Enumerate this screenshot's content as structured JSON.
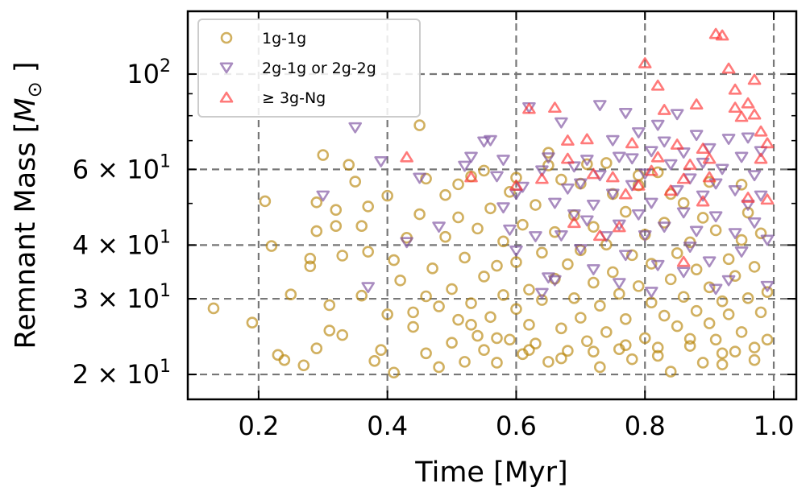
{
  "chart_data": {
    "type": "scatter",
    "xlabel": "Time [Myr]",
    "ylabel": "Remnant Mass [",
    "ylabel_symbol": "M",
    "ylabel_subscript": "⊙",
    "ylabel_close": " ]",
    "xlim": [
      0.09,
      1.035
    ],
    "ylim": [
      17.5,
      140
    ],
    "yscale": "log",
    "grid": "dashed, major ticks only",
    "legend_position": "top-left",
    "x_ticks": [
      {
        "value": 0.2,
        "label": "0.2"
      },
      {
        "value": 0.4,
        "label": "0.4"
      },
      {
        "value": 0.6,
        "label": "0.6"
      },
      {
        "value": 0.8,
        "label": "0.8"
      },
      {
        "value": 1.0,
        "label": "1.0"
      }
    ],
    "y_ticks": [
      {
        "value": 20,
        "base": "2 × 10",
        "exp": "1"
      },
      {
        "value": 30,
        "base": "3 × 10",
        "exp": "1"
      },
      {
        "value": 40,
        "base": "4 × 10",
        "exp": "1"
      },
      {
        "value": 60,
        "base": "6 × 10",
        "exp": "1"
      },
      {
        "value": 100,
        "base": "10",
        "exp": "2"
      }
    ],
    "y_minor_ticks": [
      50,
      70,
      80,
      90
    ],
    "series": [
      {
        "name": "1g-1g",
        "marker": "circle",
        "color": "#b8860b",
        "points": [
          [
            0.13,
            28.5
          ],
          [
            0.19,
            26.4
          ],
          [
            0.21,
            50.6
          ],
          [
            0.22,
            39.8
          ],
          [
            0.23,
            22.2
          ],
          [
            0.24,
            21.6
          ],
          [
            0.25,
            30.7
          ],
          [
            0.27,
            21.0
          ],
          [
            0.28,
            37.2
          ],
          [
            0.28,
            35.7
          ],
          [
            0.29,
            23.0
          ],
          [
            0.29,
            50.3
          ],
          [
            0.29,
            43.1
          ],
          [
            0.3,
            64.8
          ],
          [
            0.31,
            29.0
          ],
          [
            0.31,
            25.3
          ],
          [
            0.32,
            44.3
          ],
          [
            0.32,
            48.3
          ],
          [
            0.33,
            24.7
          ],
          [
            0.33,
            37.8
          ],
          [
            0.34,
            61.5
          ],
          [
            0.35,
            56.2
          ],
          [
            0.36,
            30.5
          ],
          [
            0.36,
            44.3
          ],
          [
            0.37,
            38.6
          ],
          [
            0.38,
            21.5
          ],
          [
            0.39,
            22.8
          ],
          [
            0.4,
            27.6
          ],
          [
            0.4,
            52.1
          ],
          [
            0.41,
            20.2
          ],
          [
            0.42,
            33.1
          ],
          [
            0.43,
            41.6
          ],
          [
            0.44,
            27.9
          ],
          [
            0.44,
            25.8
          ],
          [
            0.45,
            47.2
          ],
          [
            0.45,
            76.0
          ],
          [
            0.46,
            30.4
          ],
          [
            0.46,
            22.4
          ],
          [
            0.47,
            35.3
          ],
          [
            0.48,
            28.8
          ],
          [
            0.48,
            20.8
          ],
          [
            0.49,
            41.8
          ],
          [
            0.49,
            52.3
          ],
          [
            0.5,
            23.7
          ],
          [
            0.5,
            31.6
          ],
          [
            0.51,
            46.4
          ],
          [
            0.51,
            26.8
          ],
          [
            0.52,
            21.4
          ],
          [
            0.52,
            37.4
          ],
          [
            0.53,
            29.3
          ],
          [
            0.53,
            57.8
          ],
          [
            0.54,
            24.6
          ],
          [
            0.54,
            43.7
          ],
          [
            0.55,
            33.8
          ],
          [
            0.55,
            22.8
          ],
          [
            0.56,
            48.7
          ],
          [
            0.56,
            27.2
          ],
          [
            0.57,
            35.8
          ],
          [
            0.57,
            21.3
          ],
          [
            0.58,
            40.8
          ],
          [
            0.58,
            30.6
          ],
          [
            0.59,
            24.1
          ],
          [
            0.59,
            53.2
          ],
          [
            0.6,
            28.4
          ],
          [
            0.6,
            36.5
          ],
          [
            0.61,
            22.3
          ],
          [
            0.61,
            44.6
          ],
          [
            0.62,
            26.1
          ],
          [
            0.62,
            31.5
          ],
          [
            0.63,
            49.6
          ],
          [
            0.63,
            23.6
          ],
          [
            0.64,
            38.4
          ],
          [
            0.64,
            29.8
          ],
          [
            0.65,
            21.4
          ],
          [
            0.65,
            65.6
          ],
          [
            0.66,
            42.9
          ],
          [
            0.66,
            33.4
          ],
          [
            0.67,
            25.6
          ],
          [
            0.67,
            56.8
          ],
          [
            0.68,
            22.7
          ],
          [
            0.68,
            36.1
          ],
          [
            0.69,
            30.1
          ],
          [
            0.69,
            46.9
          ],
          [
            0.7,
            27.1
          ],
          [
            0.7,
            38.9
          ],
          [
            0.71,
            23.9
          ],
          [
            0.71,
            61.7
          ],
          [
            0.72,
            32.7
          ],
          [
            0.72,
            44.1
          ],
          [
            0.73,
            20.8
          ],
          [
            0.73,
            28.9
          ],
          [
            0.74,
            40.1
          ],
          [
            0.74,
            25.1
          ],
          [
            0.75,
            52.6
          ],
          [
            0.75,
            34.6
          ],
          [
            0.76,
            22.9
          ],
          [
            0.76,
            30.8
          ],
          [
            0.77,
            47.8
          ],
          [
            0.77,
            26.9
          ],
          [
            0.78,
            37.9
          ],
          [
            0.78,
            21.7
          ],
          [
            0.79,
            32.1
          ],
          [
            0.79,
            55.1
          ],
          [
            0.8,
            24.3
          ],
          [
            0.8,
            42.3
          ],
          [
            0.81,
            29.4
          ],
          [
            0.81,
            36.2
          ],
          [
            0.82,
            22.1
          ],
          [
            0.82,
            59.1
          ],
          [
            0.83,
            27.4
          ],
          [
            0.83,
            45.1
          ],
          [
            0.84,
            33.3
          ],
          [
            0.84,
            20.3
          ],
          [
            0.85,
            38.3
          ],
          [
            0.85,
            25.9
          ],
          [
            0.86,
            50.1
          ],
          [
            0.86,
            30.3
          ],
          [
            0.87,
            23.3
          ],
          [
            0.87,
            40.6
          ],
          [
            0.88,
            28.1
          ],
          [
            0.88,
            35.1
          ],
          [
            0.89,
            21.3
          ],
          [
            0.89,
            46.3
          ],
          [
            0.9,
            26.3
          ],
          [
            0.9,
            31.9
          ],
          [
            0.91,
            24.1
          ],
          [
            0.91,
            43.3
          ],
          [
            0.92,
            29.6
          ],
          [
            0.92,
            21.1
          ],
          [
            0.93,
            37.1
          ],
          [
            0.93,
            27.6
          ],
          [
            0.94,
            33.9
          ],
          [
            0.94,
            22.6
          ],
          [
            0.95,
            41.1
          ],
          [
            0.95,
            25.1
          ],
          [
            0.96,
            30.1
          ],
          [
            0.96,
            47.6
          ],
          [
            0.97,
            23.1
          ],
          [
            0.97,
            35.6
          ],
          [
            0.98,
            27.9
          ],
          [
            0.98,
            42.6
          ],
          [
            0.99,
            31.1
          ],
          [
            0.99,
            24.1
          ],
          [
            0.37,
            49.2
          ],
          [
            0.41,
            36.9
          ],
          [
            0.46,
            57.1
          ],
          [
            0.51,
            55.4
          ],
          [
            0.55,
            59.6
          ],
          [
            0.6,
            57.4
          ],
          [
            0.65,
            61.3
          ],
          [
            0.7,
            55.6
          ],
          [
            0.74,
            62.1
          ],
          [
            0.79,
            58.1
          ],
          [
            0.84,
            52.6
          ],
          [
            0.9,
            56.1
          ],
          [
            0.95,
            55.3
          ],
          [
            0.53,
            26.1
          ],
          [
            0.57,
            24.3
          ],
          [
            0.62,
            22.8
          ],
          [
            0.67,
            21.8
          ],
          [
            0.72,
            22.6
          ],
          [
            0.77,
            23.4
          ],
          [
            0.82,
            23.1
          ],
          [
            0.87,
            24.2
          ],
          [
            0.92,
            22.4
          ],
          [
            0.97,
            21.6
          ]
        ]
      },
      {
        "name": "2g-1g or 2g-2g",
        "marker": "triangle-down",
        "color": "#7b4f9e",
        "points": [
          [
            0.3,
            52.1
          ],
          [
            0.35,
            75.1
          ],
          [
            0.37,
            31.9
          ],
          [
            0.39,
            62.6
          ],
          [
            0.43,
            40.6
          ],
          [
            0.45,
            57.3
          ],
          [
            0.48,
            44.1
          ],
          [
            0.52,
            61.1
          ],
          [
            0.53,
            64.1
          ],
          [
            0.55,
            69.6
          ],
          [
            0.56,
            70.1
          ],
          [
            0.57,
            57.8
          ],
          [
            0.58,
            48.9
          ],
          [
            0.58,
            63.1
          ],
          [
            0.59,
            43.4
          ],
          [
            0.6,
            38.8
          ],
          [
            0.61,
            54.6
          ],
          [
            0.62,
            83.6
          ],
          [
            0.63,
            41.9
          ],
          [
            0.64,
            30.9
          ],
          [
            0.64,
            59.6
          ],
          [
            0.65,
            33.6
          ],
          [
            0.65,
            63.9
          ],
          [
            0.66,
            50.1
          ],
          [
            0.67,
            42.1
          ],
          [
            0.67,
            77.1
          ],
          [
            0.68,
            54.1
          ],
          [
            0.69,
            47.1
          ],
          [
            0.69,
            60.9
          ],
          [
            0.7,
            39.1
          ],
          [
            0.7,
            55.6
          ],
          [
            0.71,
            63.1
          ],
          [
            0.72,
            49.6
          ],
          [
            0.72,
            35.1
          ],
          [
            0.73,
            58.1
          ],
          [
            0.73,
            84.6
          ],
          [
            0.74,
            41.9
          ],
          [
            0.75,
            70.1
          ],
          [
            0.75,
            52.6
          ],
          [
            0.76,
            44.6
          ],
          [
            0.76,
            64.1
          ],
          [
            0.77,
            81.1
          ],
          [
            0.77,
            37.9
          ],
          [
            0.78,
            55.1
          ],
          [
            0.78,
            63.6
          ],
          [
            0.79,
            47.1
          ],
          [
            0.79,
            73.1
          ],
          [
            0.8,
            42.1
          ],
          [
            0.8,
            58.6
          ],
          [
            0.81,
            66.1
          ],
          [
            0.81,
            50.1
          ],
          [
            0.82,
            76.1
          ],
          [
            0.82,
            35.9
          ],
          [
            0.83,
            69.6
          ],
          [
            0.83,
            44.1
          ],
          [
            0.84,
            61.6
          ],
          [
            0.85,
            80.6
          ],
          [
            0.85,
            53.6
          ],
          [
            0.86,
            47.6
          ],
          [
            0.86,
            65.6
          ],
          [
            0.87,
            39.6
          ],
          [
            0.87,
            57.1
          ],
          [
            0.88,
            72.1
          ],
          [
            0.88,
            43.1
          ],
          [
            0.89,
            62.1
          ],
          [
            0.89,
            52.1
          ],
          [
            0.9,
            36.6
          ],
          [
            0.9,
            67.1
          ],
          [
            0.91,
            55.6
          ],
          [
            0.91,
            46.6
          ],
          [
            0.92,
            60.1
          ],
          [
            0.93,
            33.1
          ],
          [
            0.93,
            70.6
          ],
          [
            0.94,
            42.6
          ],
          [
            0.94,
            53.6
          ],
          [
            0.95,
            64.1
          ],
          [
            0.95,
            38.6
          ],
          [
            0.96,
            49.6
          ],
          [
            0.96,
            71.1
          ],
          [
            0.97,
            58.1
          ],
          [
            0.97,
            45.1
          ],
          [
            0.98,
            52.1
          ],
          [
            0.98,
            66.1
          ],
          [
            0.99,
            41.1
          ],
          [
            0.99,
            32.1
          ],
          [
            0.6,
            52.6
          ],
          [
            0.66,
            33.1
          ],
          [
            0.71,
            45.6
          ],
          [
            0.76,
            32.6
          ],
          [
            0.81,
            31.1
          ],
          [
            0.86,
            34.6
          ],
          [
            0.91,
            31.6
          ]
        ]
      },
      {
        "name": "≥ 3g-Ng",
        "marker": "triangle-up",
        "color": "#ff3333",
        "points": [
          [
            0.43,
            64.1
          ],
          [
            0.53,
            57.6
          ],
          [
            0.6,
            55.1
          ],
          [
            0.62,
            83.1
          ],
          [
            0.64,
            57.1
          ],
          [
            0.66,
            83.6
          ],
          [
            0.68,
            63.6
          ],
          [
            0.68,
            70.1
          ],
          [
            0.69,
            45.1
          ],
          [
            0.71,
            70.6
          ],
          [
            0.72,
            58.6
          ],
          [
            0.73,
            42.1
          ],
          [
            0.75,
            57.6
          ],
          [
            0.76,
            44.1
          ],
          [
            0.77,
            52.6
          ],
          [
            0.78,
            69.1
          ],
          [
            0.79,
            55.1
          ],
          [
            0.8,
            106.1
          ],
          [
            0.81,
            59.6
          ],
          [
            0.82,
            94.1
          ],
          [
            0.82,
            64.1
          ],
          [
            0.83,
            82.6
          ],
          [
            0.84,
            53.6
          ],
          [
            0.85,
            68.6
          ],
          [
            0.86,
            57.1
          ],
          [
            0.86,
            36.6
          ],
          [
            0.87,
            61.6
          ],
          [
            0.88,
            85.1
          ],
          [
            0.89,
            50.6
          ],
          [
            0.89,
            67.1
          ],
          [
            0.9,
            57.6
          ],
          [
            0.91,
            124.1
          ],
          [
            0.92,
            123.1
          ],
          [
            0.93,
            103.1
          ],
          [
            0.94,
            83.6
          ],
          [
            0.95,
            79.6
          ],
          [
            0.96,
            85.6
          ],
          [
            0.96,
            51.6
          ],
          [
            0.97,
            80.6
          ],
          [
            0.97,
            97.1
          ],
          [
            0.98,
            63.6
          ],
          [
            0.98,
            73.6
          ],
          [
            0.99,
            51.1
          ],
          [
            0.99,
            69.1
          ],
          [
            0.9,
            63.6
          ],
          [
            0.94,
            92.1
          ]
        ]
      }
    ]
  }
}
